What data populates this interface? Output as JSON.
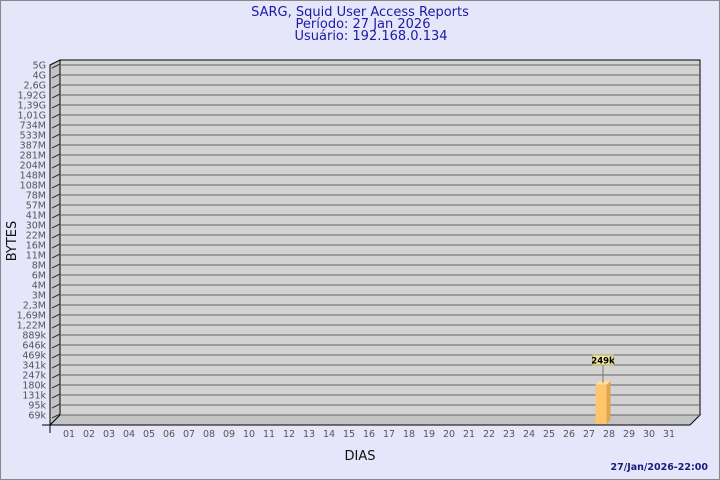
{
  "chart_data": {
    "type": "bar",
    "title": "SARG, Squid User Access Reports",
    "subtitle_lines": [
      "Período: 27 Jan 2026",
      "Usuário: 192.168.0.134"
    ],
    "xlabel": "DIAS",
    "ylabel": "BYTES",
    "y_scale": "log",
    "y_ticks": [
      "5G",
      "4G",
      "2,6G",
      "1,92G",
      "1,39G",
      "1,01G",
      "734M",
      "533M",
      "387M",
      "281M",
      "204M",
      "148M",
      "108M",
      "78M",
      "57M",
      "41M",
      "30M",
      "22M",
      "16M",
      "11M",
      "8M",
      "6M",
      "4M",
      "3M",
      "2,3M",
      "1,69M",
      "1,22M",
      "889k",
      "646k",
      "469k",
      "341k",
      "247k",
      "180k",
      "131k",
      "95k",
      "69k"
    ],
    "categories": [
      "01",
      "02",
      "03",
      "04",
      "05",
      "06",
      "07",
      "08",
      "09",
      "10",
      "11",
      "12",
      "13",
      "14",
      "15",
      "16",
      "17",
      "18",
      "19",
      "20",
      "21",
      "22",
      "23",
      "24",
      "25",
      "26",
      "27",
      "28",
      "29",
      "30",
      "31"
    ],
    "values": [
      0,
      0,
      0,
      0,
      0,
      0,
      0,
      0,
      0,
      0,
      0,
      0,
      0,
      0,
      0,
      0,
      0,
      0,
      0,
      0,
      0,
      0,
      0,
      0,
      0,
      0,
      249000,
      0,
      0,
      0,
      0
    ],
    "data_labels": {
      "27": "249k"
    },
    "grid": true,
    "colors": {
      "bar": "#ffc56c",
      "bar_side": "#e0a64c",
      "wall": "#d3d3d3",
      "background": "#e6e6fa",
      "title": "#1a1aa6"
    }
  },
  "footer": {
    "timestamp": "27/Jan/2026-22:00"
  }
}
